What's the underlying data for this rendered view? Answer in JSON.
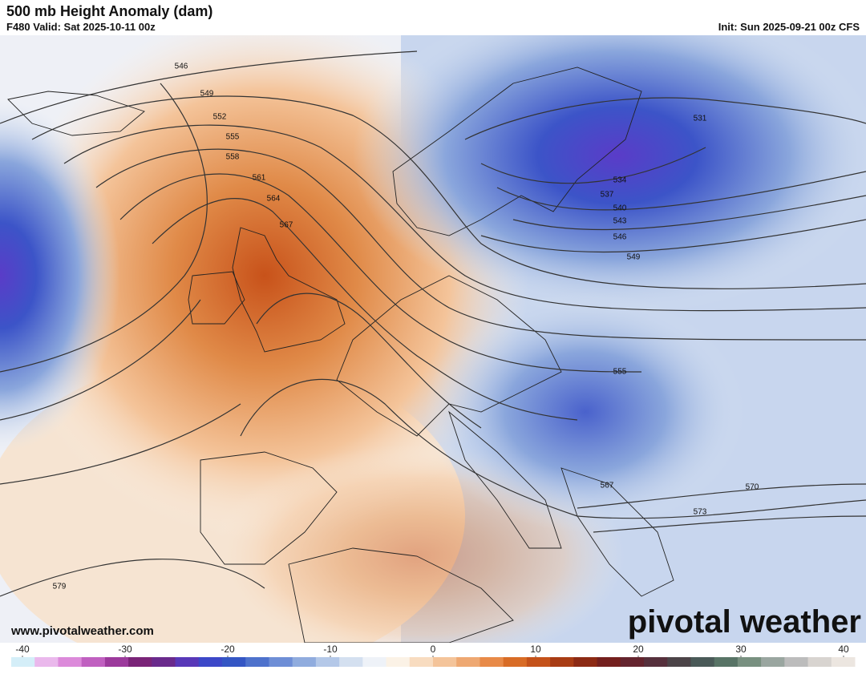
{
  "header": {
    "title": "500 mb Height Anomaly (dam)",
    "valid": "F480 Valid: Sat 2025-10-11 00z",
    "init": "Init: Sun 2025-09-21 00z CFS"
  },
  "contours": [
    "546",
    "549",
    "552",
    "555",
    "558",
    "561",
    "564",
    "567",
    "531",
    "534",
    "537",
    "540",
    "543",
    "546",
    "549",
    "555",
    "567",
    "570",
    "573",
    "579"
  ],
  "footer": {
    "website": "www.pivotalweather.com",
    "logo": "pivotal weather"
  },
  "colorbar": {
    "range": [
      -40,
      40
    ],
    "ticks": [
      -40,
      -30,
      -20,
      -10,
      0,
      10,
      20,
      30,
      40
    ],
    "colors": [
      "#d4eef8",
      "#eab8ec",
      "#dc8ada",
      "#c060c0",
      "#9c3a9c",
      "#7a2478",
      "#6a2a8c",
      "#5838b8",
      "#3c48c8",
      "#3456c4",
      "#4e72cc",
      "#6e8ed6",
      "#90acde",
      "#b4c8e8",
      "#d4e0f0",
      "#eef2f8",
      "#fbf2e6",
      "#f8dcc0",
      "#f4c49a",
      "#eea872",
      "#e88a48",
      "#d86c26",
      "#c4521a",
      "#a83c14",
      "#8c2a14",
      "#74201e",
      "#64242e",
      "#56303c",
      "#4c4448",
      "#4a5a58",
      "#587466",
      "#789080",
      "#9aa6a0",
      "#bcbcbc",
      "#d8d4d0",
      "#ece6e0"
    ]
  }
}
